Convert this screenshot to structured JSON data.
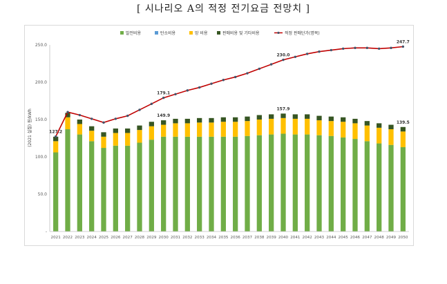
{
  "title": "[ 시나리오 A의 적정 전기요금 전망치 ]",
  "chart_data": {
    "type": "bar",
    "stacked": true,
    "ylabel": "(2021 실질) 원/kWh",
    "ylim": [
      0,
      250
    ],
    "yticks": [
      "-",
      "50.0",
      "100.0",
      "150.0",
      "200.0",
      "250.0"
    ],
    "grid": false,
    "legend_position": "top",
    "categories": [
      "2021",
      "2022",
      "2023",
      "2024",
      "2025",
      "2026",
      "2027",
      "2028",
      "2029",
      "2030",
      "2031",
      "2032",
      "2033",
      "2034",
      "2035",
      "2036",
      "2037",
      "2038",
      "2039",
      "2040",
      "2041",
      "2042",
      "2043",
      "2044",
      "2045",
      "2046",
      "2047",
      "2048",
      "2049",
      "2050"
    ],
    "series": [
      {
        "name": "발전비용",
        "kind": "bar",
        "color": "#70ad47",
        "values": [
          106,
          137,
          130,
          121,
          112,
          115,
          115,
          119,
          123,
          127,
          127,
          127,
          127,
          127,
          127,
          127,
          128,
          129,
          130,
          131,
          130,
          130,
          129,
          128,
          126,
          124,
          121,
          118,
          116,
          113
        ]
      },
      {
        "name": "탄소비용",
        "kind": "bar",
        "color": "#5b9bd5",
        "values": [
          0,
          0,
          0,
          0,
          0,
          0,
          0,
          0,
          0,
          0,
          0,
          0,
          0,
          0,
          0,
          0,
          0,
          0,
          0,
          0,
          0,
          0,
          0,
          0,
          0,
          0,
          0,
          0,
          0,
          0
        ]
      },
      {
        "name": "망 비용",
        "kind": "bar",
        "color": "#ffc000",
        "values": [
          15,
          16,
          14,
          14,
          15,
          17,
          17,
          17,
          18,
          16,
          18,
          18,
          19,
          19,
          20,
          20,
          20,
          21,
          21,
          21,
          21,
          21,
          20,
          20,
          21,
          21,
          21,
          21,
          21,
          21
        ]
      },
      {
        "name": "판매비용 및 기타비용",
        "kind": "bar",
        "color": "#375623",
        "values": [
          6,
          6,
          6,
          6,
          6,
          6,
          6,
          6,
          6,
          6,
          6,
          6,
          6,
          6,
          6,
          6,
          6,
          6,
          6,
          6,
          6,
          6,
          6,
          6,
          6,
          6,
          6,
          6,
          6,
          6
        ]
      },
      {
        "name": "적정 판매단가(명목)",
        "kind": "line",
        "color": "#c00000",
        "marker_color": "#44546a",
        "values": [
          127.2,
          160,
          156,
          151,
          146,
          151,
          155,
          163,
          171,
          179.1,
          184,
          189,
          193,
          198,
          203,
          207,
          212,
          218,
          224,
          230.0,
          234,
          238,
          241,
          243,
          245,
          246,
          246,
          245,
          246,
          247.7
        ]
      }
    ],
    "data_labels": [
      {
        "series": "적정 판매단가(명목)",
        "category": "2021",
        "text": "127.2"
      },
      {
        "series": "적정 판매단가(명목)",
        "category": "2030",
        "text": "179.1"
      },
      {
        "series": "적정 판매단가(명목)",
        "category": "2040",
        "text": "230.0"
      },
      {
        "series": "적정 판매단가(명목)",
        "category": "2050",
        "text": "247.7"
      },
      {
        "series": "stack_total",
        "category": "2030",
        "text": "149.9"
      },
      {
        "series": "stack_total",
        "category": "2040",
        "text": "157.9"
      },
      {
        "series": "stack_total",
        "category": "2050",
        "text": "139.5"
      }
    ]
  }
}
